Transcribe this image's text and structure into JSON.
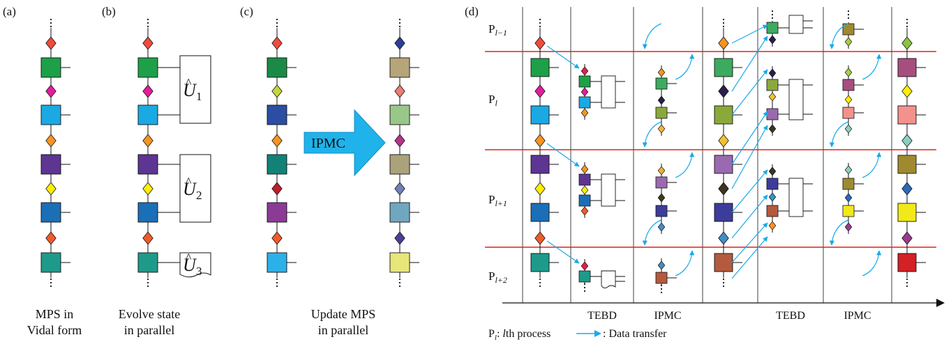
{
  "panel_labels": {
    "a": "(a)",
    "b": "(b)",
    "c": "(c)",
    "d": "(d)"
  },
  "captions": {
    "a_line1": "MPS in",
    "a_line2": "Vidal form",
    "b_line1": "Evolve state",
    "b_line2": "in parallel",
    "c_line1": "Update MPS",
    "c_line2": "in parallel"
  },
  "gates": {
    "u1_sub": "1",
    "u2_sub": "2",
    "u3_sub": "3"
  },
  "arrow_label": "IPMC",
  "process_labels": [
    {
      "base": "P",
      "sub": "l−1"
    },
    {
      "base": "P",
      "sub": "l"
    },
    {
      "base": "P",
      "sub": "l+1"
    },
    {
      "base": "P",
      "sub": "l+2"
    }
  ],
  "step_labels": [
    "TEBD",
    "IPMC",
    "TEBD",
    "IPMC"
  ],
  "legend": {
    "process_base": "P",
    "process_sub": "l",
    "process_text": ": ",
    "process_italic": "l",
    "process_rest": "th process",
    "transfer_text": ": Data transfer"
  },
  "colors": {
    "separator": "#e0201e",
    "transfer": "#1aaae8",
    "ipmc_arrow": "#20b2ea"
  }
}
